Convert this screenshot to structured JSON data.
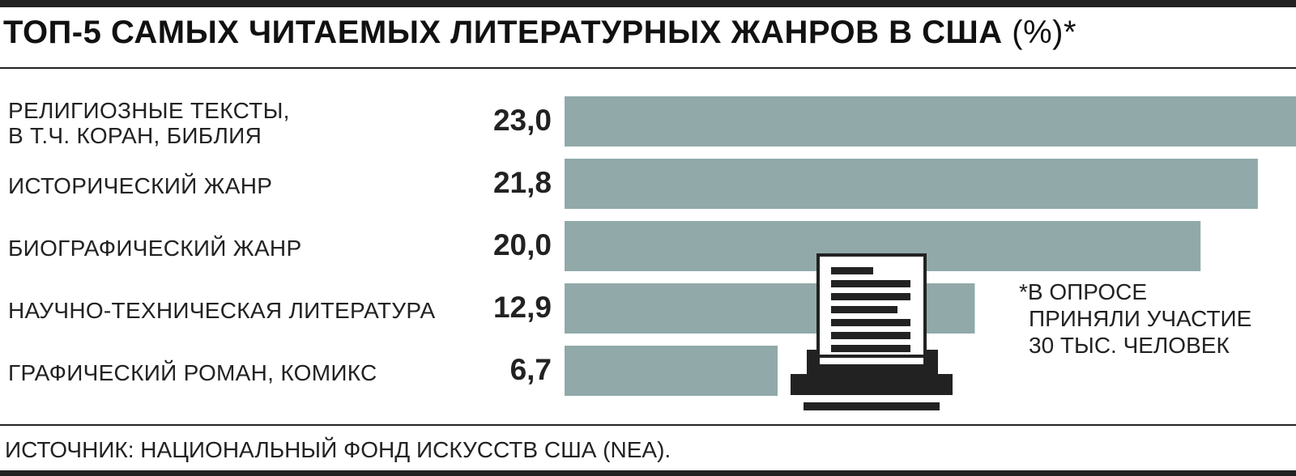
{
  "chart_data": {
    "type": "bar",
    "orientation": "horizontal",
    "title": "ТОП-5 САМЫХ ЧИТАЕМЫХ ЛИТЕРАТУРНЫХ ЖАНРОВ В США",
    "title_suffix": "(%)*",
    "categories": [
      "РЕЛИГИОЗНЫЕ ТЕКСТЫ,\nВ Т.Ч. КОРАН, БИБЛИЯ",
      "ИСТОРИЧЕСКИЙ ЖАНР",
      "БИОГРАФИЧЕСКИЙ ЖАНР",
      "НАУЧНО-ТЕХНИЧЕСКАЯ ЛИТЕРАТУРА",
      "ГРАФИЧЕСКИЙ РОМАН, КОМИКС"
    ],
    "values": [
      23.0,
      21.8,
      20.0,
      12.9,
      6.7
    ],
    "value_labels": [
      "23,0",
      "21,8",
      "20,0",
      "12,9",
      "6,7"
    ],
    "color": "#91a9a9",
    "note": [
      "*В ОПРОСЕ",
      "ПРИНЯЛИ УЧАСТИЕ",
      "30 ТЫС. ЧЕЛОВЕК"
    ],
    "source": "ИСТОЧНИК: НАЦИОНАЛЬНЫЙ ФОНД ИСКУССТВ США (NEA)."
  }
}
